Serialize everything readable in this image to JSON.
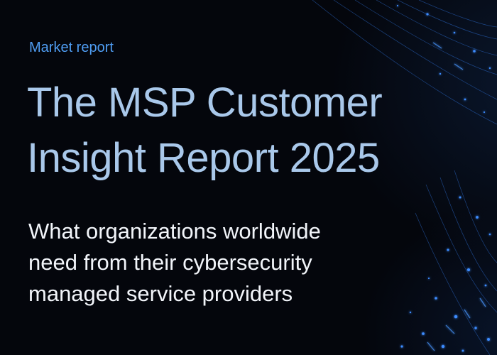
{
  "cover": {
    "eyebrow": "Market report",
    "title_lines": [
      "The MSP Customer",
      "Insight Report 2025"
    ],
    "subtitle_lines": [
      "What organizations worldwide",
      "need from their cybersecurity",
      "managed service providers"
    ]
  },
  "colors": {
    "background": "#04060c",
    "eyebrow": "#4f9df3",
    "title": "#a9c8ea",
    "subtitle": "#f2f5fa",
    "accent_glow": "#2f7fff"
  }
}
